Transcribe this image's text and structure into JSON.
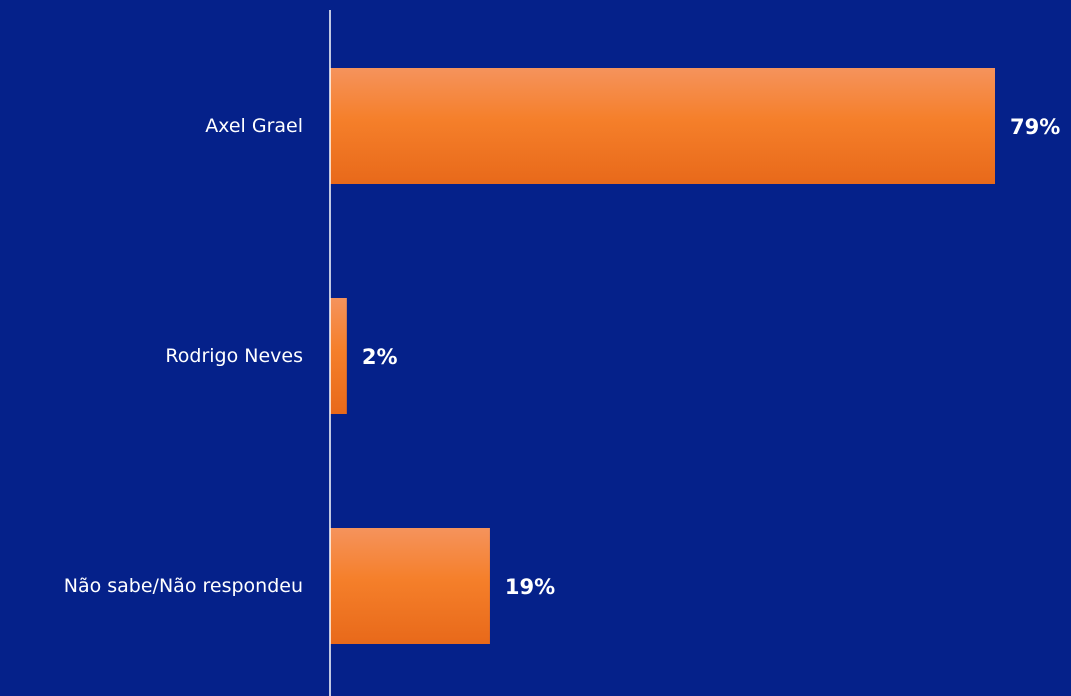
{
  "colors": {
    "background": "#05218a",
    "bar_top": "#f5935c",
    "bar_middle": "#f57f2a",
    "bar_bottom": "#e8691a",
    "axis": "#ffffff",
    "text": "#ffffff"
  },
  "chart_data": {
    "type": "bar",
    "orientation": "horizontal",
    "categories": [
      "Axel Grael",
      "Rodrigo Neves",
      "Não sabe/Não respondeu"
    ],
    "values": [
      79,
      2,
      19
    ],
    "value_labels": [
      "79%",
      "2%",
      "19%"
    ],
    "xlim": [
      0,
      79
    ],
    "grid": false,
    "legend": "none"
  }
}
